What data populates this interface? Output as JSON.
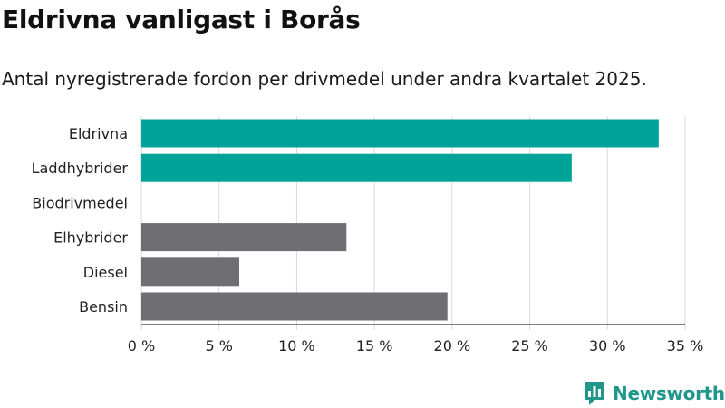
{
  "header": {
    "title": "Eldrivna vanligast i Borås",
    "subtitle": "Antal nyregistrerade fordon per drivmedel under andra kvartalet 2025."
  },
  "brand": {
    "name": "Newsworthy",
    "icon": "newsworthy-logo-icon"
  },
  "colors": {
    "electric": "#00a398",
    "other": "#6e6e73",
    "grid": "#d9d9d9",
    "axis": "#333333"
  },
  "chart_data": {
    "type": "bar",
    "orientation": "horizontal",
    "categories": [
      "Eldrivna",
      "Laddhybrider",
      "Biodrivmedel",
      "Elhybrider",
      "Diesel",
      "Bensin"
    ],
    "values": [
      33.3,
      27.7,
      0,
      13.2,
      6.3,
      19.7
    ],
    "bar_colors": [
      "#00a398",
      "#00a398",
      "#00a398",
      "#6e6e73",
      "#6e6e73",
      "#6e6e73"
    ],
    "xlim": [
      0,
      35
    ],
    "x_ticks": [
      0,
      5,
      10,
      15,
      20,
      25,
      30,
      35
    ],
    "x_tick_labels": [
      "0 %",
      "5 %",
      "10 %",
      "15 %",
      "20 %",
      "25 %",
      "30 %",
      "35 %"
    ],
    "grid": true
  }
}
